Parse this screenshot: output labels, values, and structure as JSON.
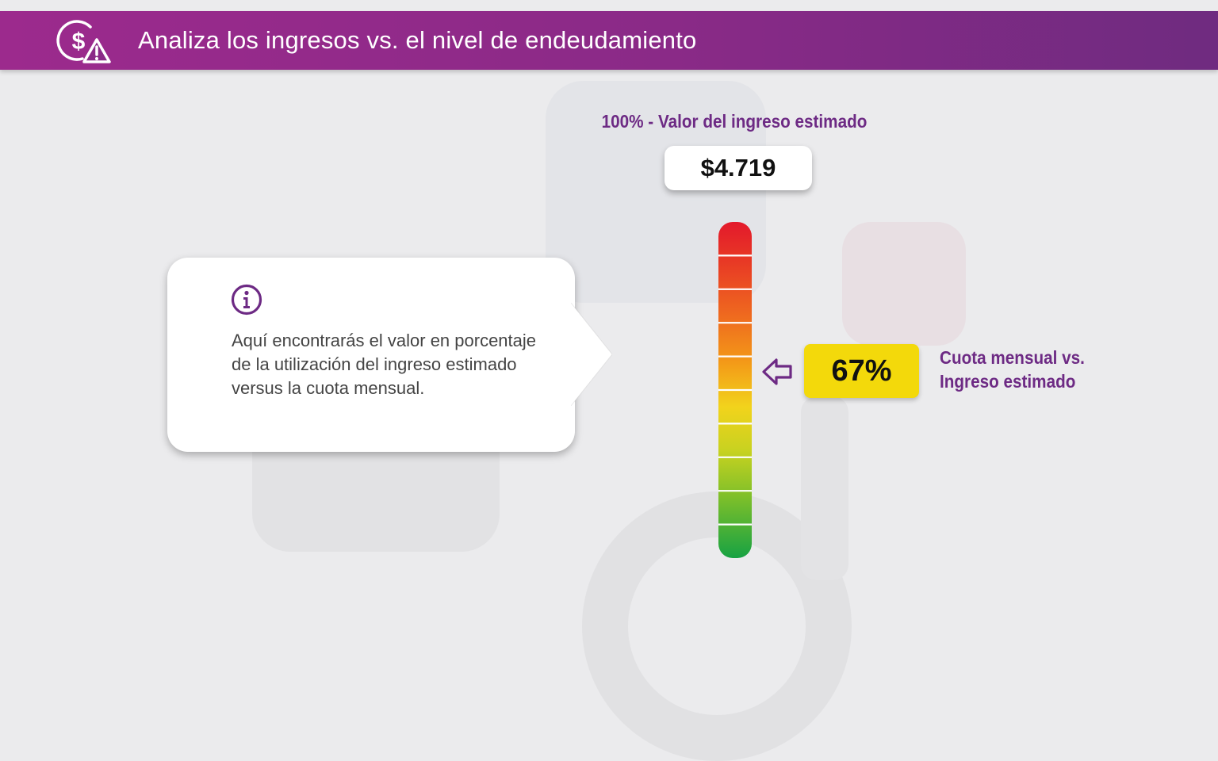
{
  "header": {
    "title": "Analiza los ingresos vs. el nivel de endeudamiento",
    "icon": "money-warning-icon"
  },
  "callout": {
    "icon": "info-icon",
    "text": "Aquí encontrarás el valor en porcentaje de la utilización del ingreso estimado versus la cuota mensual."
  },
  "gauge": {
    "top_label": "100% - Valor del ingreso estimado",
    "income_value": "$4.719",
    "percent_label": "67%",
    "level_fraction": 0.67,
    "segments": 10,
    "side_label_line1": "Cuota mensual vs.",
    "side_label_line2": "Ingreso estimado",
    "pointer_icon": "arrow-left-outline-icon",
    "colors": {
      "top": "#e3192b",
      "orange": "#f08c1c",
      "yellow": "#f2d31c",
      "bottom": "#17a243",
      "accent": "#6d2a84",
      "highlight": "#f3d90b"
    }
  }
}
